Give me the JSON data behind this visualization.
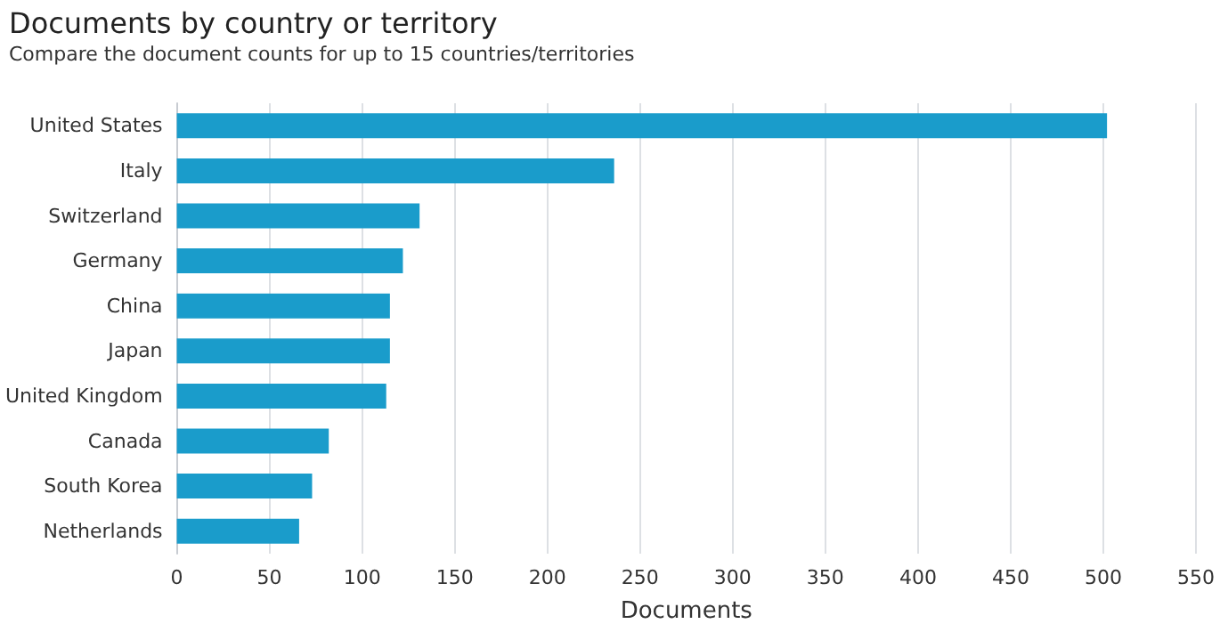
{
  "chart_data": {
    "type": "bar",
    "orientation": "horizontal",
    "title": "Documents by country or territory",
    "subtitle": "Compare the document counts for up to 15 countries/territories",
    "xlabel": "Documents",
    "categories": [
      "United States",
      "Italy",
      "Switzerland",
      "Germany",
      "China",
      "Japan",
      "United Kingdom",
      "Canada",
      "South Korea",
      "Netherlands"
    ],
    "values": [
      502,
      236,
      131,
      122,
      115,
      115,
      113,
      82,
      73,
      66
    ],
    "color": "#1a9ccb",
    "xlim": [
      0,
      550
    ],
    "xticks": [
      0,
      50,
      100,
      150,
      200,
      250,
      300,
      350,
      400,
      450,
      500,
      550
    ],
    "grid": "x"
  }
}
